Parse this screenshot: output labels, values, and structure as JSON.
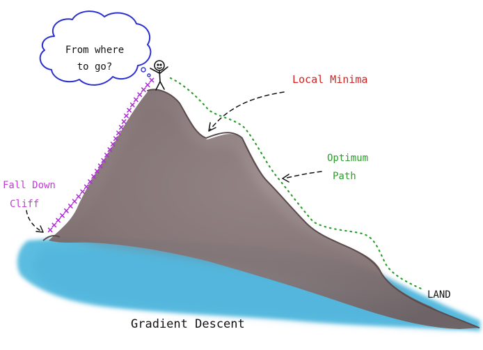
{
  "labels": {
    "thought": [
      "From where",
      "to go?"
    ],
    "local_minima": "Local Minima",
    "optimum_path": [
      "Optimum",
      "Path"
    ],
    "fall_down": [
      "Fall Down",
      "Cliff"
    ],
    "land": "LAND",
    "caption": "Gradient Descent"
  },
  "colors": {
    "local_minima": "#d61f1f",
    "optimum_path": "#2a9d2a",
    "fall_down": "#c23ad6",
    "cliff_path": "#b02fd6",
    "thought_bubble": "#2a2fd0",
    "mountain": "#8f7f80",
    "mountain_dark": "#6d5d5e",
    "water": "#5bbde0",
    "ink": "#111111"
  },
  "icons": [
    "stick-figure-icon",
    "thought-cloud-icon",
    "arrow-icon"
  ]
}
